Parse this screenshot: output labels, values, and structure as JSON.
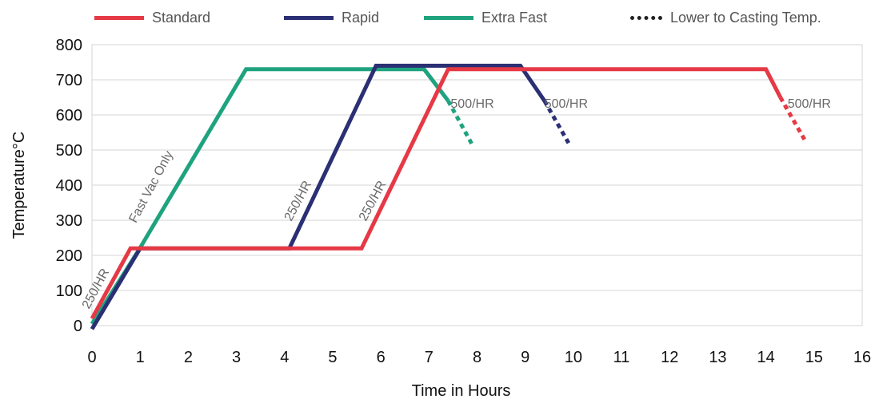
{
  "chart_data": {
    "type": "line",
    "xlabel": "Time in Hours",
    "ylabel": "Temperature°C",
    "xlim": [
      0,
      16
    ],
    "ylim": [
      0,
      800
    ],
    "x_ticks": [
      "0",
      "1",
      "2",
      "3",
      "4",
      "5",
      "6",
      "7",
      "8",
      "9",
      "10",
      "11",
      "12",
      "13",
      "14",
      "15",
      "16"
    ],
    "y_ticks": [
      "0",
      "100",
      "200",
      "300",
      "400",
      "500",
      "600",
      "700",
      "800"
    ],
    "grid": "horizontal",
    "legend_placement": "top",
    "legend": [
      {
        "name": "Standard",
        "color": "#e63946",
        "style": "solid"
      },
      {
        "name": "Rapid",
        "color": "#2b2f73",
        "style": "solid"
      },
      {
        "name": "Extra Fast",
        "color": "#1fa37f",
        "style": "solid"
      },
      {
        "name": "Lower to Casting Temp.",
        "color": "#222222",
        "style": "dotted"
      }
    ],
    "series": [
      {
        "name": "Standard",
        "color": "#e63946",
        "points": [
          [
            0,
            20
          ],
          [
            0.8,
            220
          ],
          [
            5.6,
            220
          ],
          [
            7.4,
            730
          ],
          [
            14,
            730
          ],
          [
            14.3,
            650
          ]
        ],
        "cooldown": [
          [
            14.3,
            650
          ],
          [
            14.8,
            530
          ]
        ]
      },
      {
        "name": "Rapid",
        "color": "#2b2f73",
        "points": [
          [
            0,
            -10
          ],
          [
            1,
            220
          ],
          [
            4.1,
            220
          ],
          [
            5.9,
            740
          ],
          [
            8.9,
            740
          ],
          [
            9.4,
            640
          ]
        ],
        "cooldown": [
          [
            9.4,
            640
          ],
          [
            9.9,
            520
          ]
        ]
      },
      {
        "name": "Extra Fast",
        "color": "#1fa37f",
        "points": [
          [
            0,
            5
          ],
          [
            0.95,
            210
          ],
          [
            3.2,
            730
          ],
          [
            6.9,
            730
          ],
          [
            7.4,
            640
          ]
        ],
        "cooldown": [
          [
            7.4,
            640
          ],
          [
            7.9,
            515
          ]
        ]
      }
    ],
    "annotations": [
      {
        "text": "250/HR",
        "x": 0.15,
        "y": 100,
        "rotate": -62
      },
      {
        "text": "Fast Vac Only",
        "x": 1.3,
        "y": 390,
        "rotate": -62
      },
      {
        "text": "250/HR",
        "x": 4.35,
        "y": 350,
        "rotate": -62
      },
      {
        "text": "250/HR",
        "x": 5.9,
        "y": 350,
        "rotate": -62
      },
      {
        "text": "500/HR",
        "x": 7.45,
        "y": 620,
        "rotate": 0
      },
      {
        "text": "500/HR",
        "x": 9.4,
        "y": 620,
        "rotate": 0
      },
      {
        "text": "500/HR",
        "x": 14.45,
        "y": 620,
        "rotate": 0
      }
    ]
  }
}
